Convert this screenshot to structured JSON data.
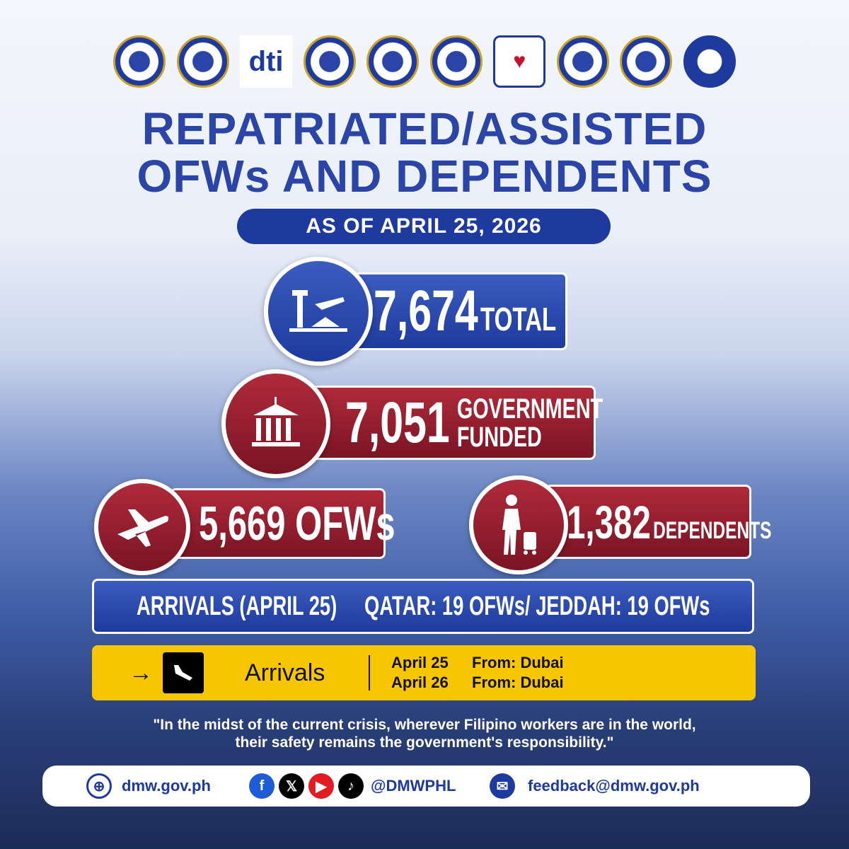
{
  "logos": [
    "DOH",
    "DICT",
    "dti",
    "DMW",
    "OP",
    "DFA",
    "DSWD",
    "NMP",
    "OWWA",
    "TESDA"
  ],
  "title": {
    "line1": "REPATRIATED/ASSISTED",
    "line2": "OFWs AND DEPENDENTS"
  },
  "as_of": "AS OF APRIL 25, 2026",
  "total": {
    "value": "7,674",
    "label": "TOTAL",
    "icon": "airport-icon"
  },
  "government": {
    "value": "7,051",
    "label1": "GOVERNMENT",
    "label2": "FUNDED",
    "icon": "government-building-icon"
  },
  "ofws": {
    "value": "5,669",
    "label": "OFWs",
    "icon": "airplane-icon"
  },
  "dependents": {
    "value": "1,382",
    "label": "DEPENDENTS",
    "icon": "traveler-icon"
  },
  "arrivals_bar": {
    "label": "ARRIVALS (APRIL 25)",
    "detail": "QATAR: 19 OFWs/ JEDDAH: 19 OFWs"
  },
  "arrivals_board": {
    "label": "Arrivals",
    "rows": [
      {
        "date": "April 25",
        "from": "From: Dubai"
      },
      {
        "date": "April 26",
        "from": "From: Dubai"
      }
    ]
  },
  "quote": {
    "line1": "\"In the midst of the current crisis, wherever Filipino workers are in the world,",
    "line2": "their safety remains the government's responsibility.\""
  },
  "footer": {
    "website": "dmw.gov.ph",
    "handle": "@DMWPHL",
    "email": "feedback@dmw.gov.ph"
  },
  "colors": {
    "blue": "#1e3a9e",
    "red": "#8e1c2c",
    "yellow": "#f8c600"
  }
}
